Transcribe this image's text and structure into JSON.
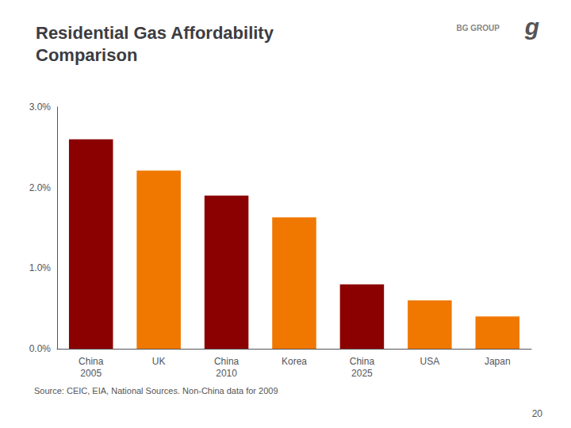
{
  "chart_data": {
    "type": "bar",
    "title": "Residential Gas Affordability\nComparison",
    "categories": [
      "China\n2005",
      "UK",
      "China\n2010",
      "Korea",
      "China\n2025",
      "USA",
      "Japan"
    ],
    "values": [
      2.6,
      2.21,
      1.9,
      1.63,
      0.8,
      0.6,
      0.4
    ],
    "colors": [
      "#8B0000",
      "#F07800",
      "#8B0000",
      "#F07800",
      "#8B0000",
      "#F07800",
      "#F07800"
    ],
    "ylim": [
      0.0,
      3.0
    ],
    "yticks": [
      {
        "value": 0.0,
        "label": "0.0%"
      },
      {
        "value": 1.0,
        "label": "1.0%"
      },
      {
        "value": 2.0,
        "label": "2.0%"
      },
      {
        "value": 3.0,
        "label": "3.0%"
      }
    ],
    "grid": false,
    "annotations": [
      "BG GROUP",
      "g",
      "Source: CEIC, EIA, National Sources. Non-China data for 2009",
      "20"
    ]
  }
}
